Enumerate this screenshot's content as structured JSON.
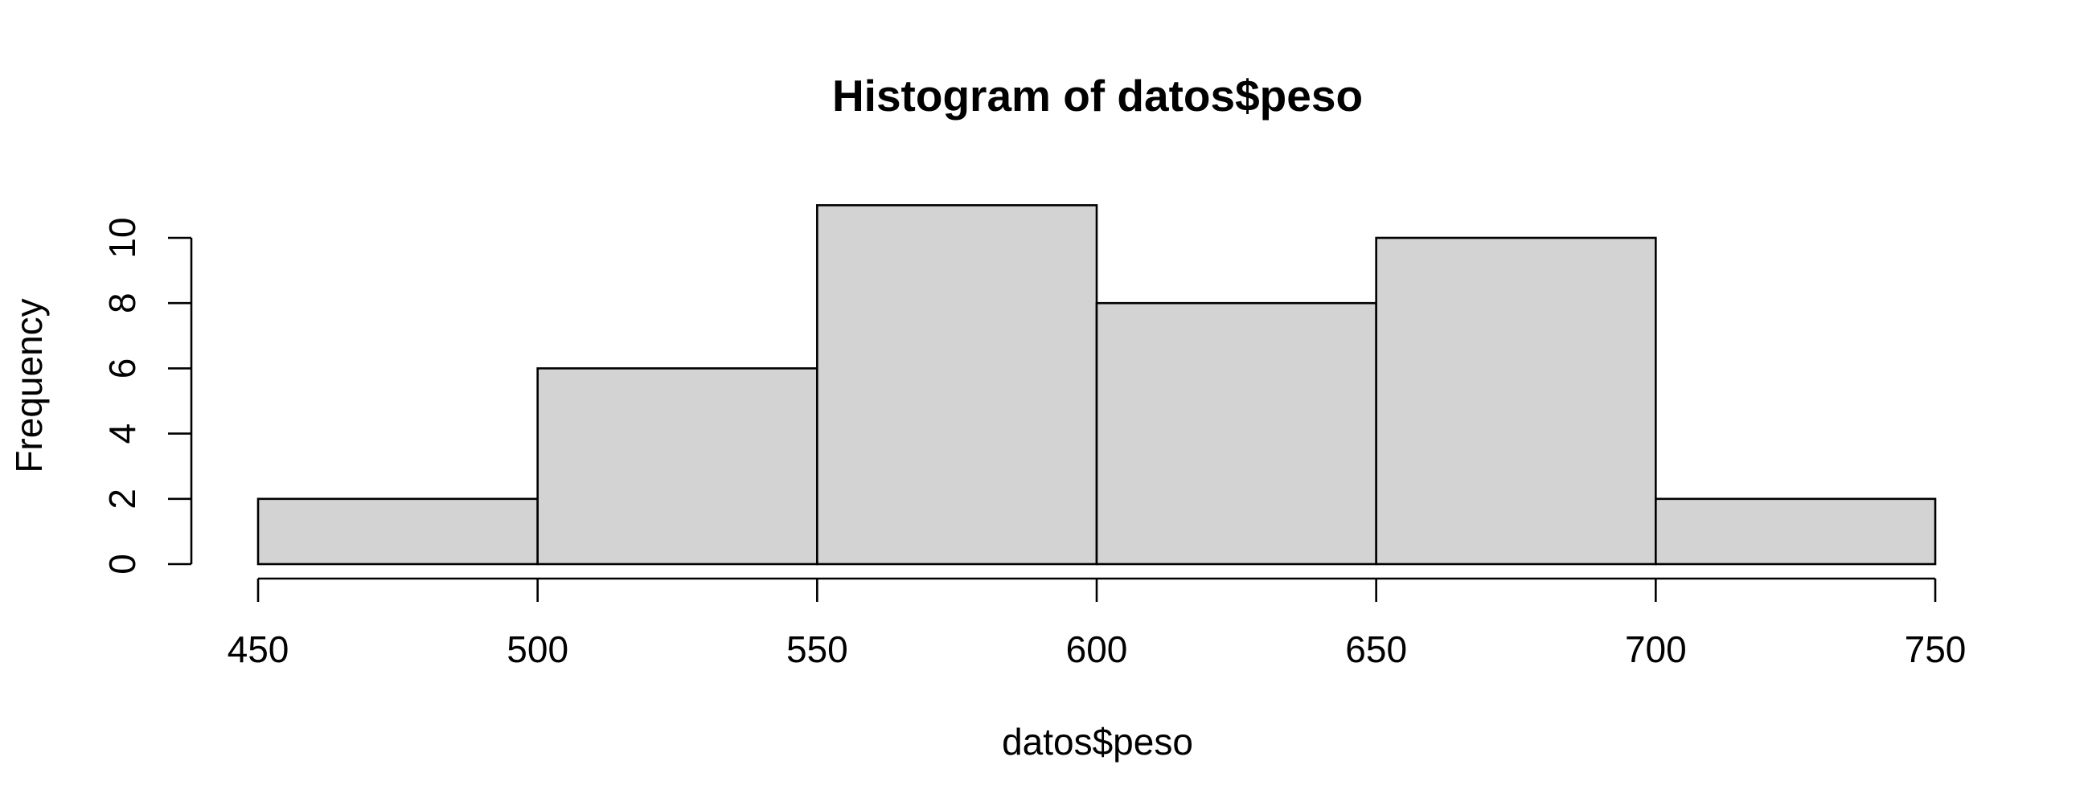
{
  "chart_data": {
    "type": "bar",
    "title": "Histogram of datos$peso",
    "xlabel": "datos$peso",
    "ylabel": "Frequency",
    "bins": [
      [
        450,
        500
      ],
      [
        500,
        550
      ],
      [
        550,
        600
      ],
      [
        600,
        650
      ],
      [
        650,
        700
      ],
      [
        700,
        750
      ]
    ],
    "values": [
      2,
      6,
      11,
      8,
      10,
      2
    ],
    "xlim": [
      450,
      750
    ],
    "ylim": [
      0,
      11
    ],
    "x_ticks": [
      450,
      500,
      550,
      600,
      650,
      700,
      750
    ],
    "y_ticks": [
      0,
      2,
      4,
      6,
      8,
      10
    ],
    "grid": false,
    "bar_fill": "#d3d3d3",
    "bar_stroke": "#000000"
  }
}
